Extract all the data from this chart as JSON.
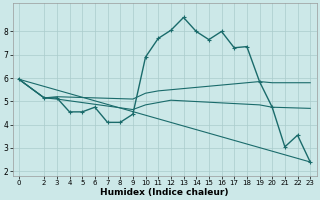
{
  "bg_color": "#cce8e8",
  "grid_color": "#aacccc",
  "line_color": "#1a6b6b",
  "xlabel": "Humidex (Indice chaleur)",
  "xlim": [
    -0.5,
    23.5
  ],
  "ylim": [
    1.8,
    9.2
  ],
  "yticks": [
    2,
    3,
    4,
    5,
    6,
    7,
    8
  ],
  "xticks": [
    0,
    2,
    3,
    4,
    5,
    6,
    7,
    8,
    9,
    10,
    11,
    12,
    13,
    14,
    15,
    16,
    17,
    18,
    19,
    20,
    21,
    22,
    23
  ],
  "series": [
    {
      "x": [
        0,
        2,
        3,
        4,
        5,
        6,
        7,
        8,
        9,
        10,
        11,
        12,
        13,
        14,
        15,
        16,
        17,
        18,
        19,
        20,
        21,
        22,
        23
      ],
      "y": [
        5.95,
        5.15,
        5.15,
        4.55,
        4.55,
        4.75,
        4.1,
        4.1,
        4.45,
        6.9,
        7.7,
        8.05,
        8.6,
        8.0,
        7.65,
        8.0,
        7.3,
        7.35,
        5.85,
        4.75,
        3.05,
        3.55,
        2.4
      ],
      "marker": true,
      "linewidth": 1.0
    },
    {
      "x": [
        0,
        23
      ],
      "y": [
        5.95,
        2.4
      ],
      "marker": false,
      "linewidth": 0.8
    },
    {
      "x": [
        0,
        2,
        3,
        9,
        10,
        11,
        12,
        19,
        20,
        23
      ],
      "y": [
        5.95,
        5.15,
        5.2,
        5.1,
        5.35,
        5.45,
        5.5,
        5.85,
        5.8,
        5.8
      ],
      "marker": false,
      "linewidth": 0.8
    },
    {
      "x": [
        0,
        2,
        3,
        9,
        10,
        11,
        12,
        19,
        20,
        23
      ],
      "y": [
        5.95,
        5.15,
        5.1,
        4.65,
        4.85,
        4.95,
        5.05,
        4.85,
        4.75,
        4.7
      ],
      "marker": false,
      "linewidth": 0.8
    }
  ]
}
